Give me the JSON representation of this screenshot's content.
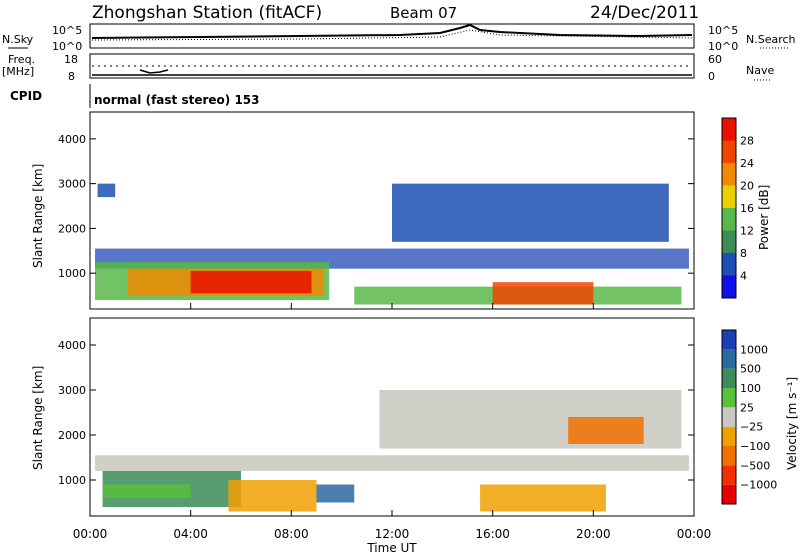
{
  "header": {
    "station": "Zhongshan Station (fitACF)",
    "beam": "Beam 07",
    "date": "24/Dec/2011"
  },
  "noise_panel": {
    "left_label": "N.Sky",
    "right_label": "N.Search",
    "tick_top": "10^5",
    "tick_bottom": "10^0",
    "right_tick_top": "10^5",
    "right_tick_bottom": "10^0"
  },
  "freq_panel": {
    "left_label_1": "Freq.",
    "left_label_2": "[MHz]",
    "tick_top": "18",
    "tick_bottom": "8",
    "right_label": "Nave",
    "right_tick_top": "60",
    "right_tick_bottom": "0"
  },
  "cpid_panel": {
    "label": "CPID",
    "text": "normal (fast stereo) 153"
  },
  "chart_data": [
    {
      "type": "heatmap",
      "name": "power",
      "ylabel": "Slant Range [km]",
      "ylim": [
        200,
        4600
      ],
      "yticks": [
        "1000",
        "2000",
        "3000",
        "4000"
      ],
      "colorbar_label": "Power [dB]",
      "colorbar_ticks": [
        "4",
        "8",
        "12",
        "16",
        "20",
        "24",
        "28"
      ],
      "colors": [
        "#1010e8",
        "#1f4fb5",
        "#3b8c57",
        "#58b848",
        "#e8d000",
        "#f08a00",
        "#f04500",
        "#e81000"
      ],
      "regions": [
        {
          "t0": 0.2,
          "t1": 23.8,
          "r0": 1100,
          "r1": 1550,
          "color": "#3b5fc0"
        },
        {
          "t0": 0.2,
          "t1": 9.5,
          "r0": 400,
          "r1": 1250,
          "color": "#58b848"
        },
        {
          "t0": 1.5,
          "t1": 9.3,
          "r0": 500,
          "r1": 1100,
          "color": "#f08a00"
        },
        {
          "t0": 4.0,
          "t1": 8.8,
          "r0": 550,
          "r1": 1050,
          "color": "#e81000"
        },
        {
          "t0": 10.5,
          "t1": 23.5,
          "r0": 300,
          "r1": 700,
          "color": "#58b848"
        },
        {
          "t0": 16.0,
          "t1": 20.0,
          "r0": 300,
          "r1": 800,
          "color": "#f04500"
        },
        {
          "t0": 12.0,
          "t1": 23.0,
          "r0": 1700,
          "r1": 3000,
          "color": "#1f4fb5"
        },
        {
          "t0": 0.3,
          "t1": 1.0,
          "r0": 2700,
          "r1": 3000,
          "color": "#1f4fb5"
        }
      ]
    },
    {
      "type": "heatmap",
      "name": "velocity",
      "ylabel": "Slant Range [km]",
      "ylim": [
        200,
        4600
      ],
      "yticks": [
        "1000",
        "2000",
        "3000",
        "4000"
      ],
      "colorbar_label": "Velocity [m s⁻¹]",
      "colorbar_ticks": [
        "1000",
        "500",
        "100",
        "25",
        "−25",
        "−100",
        "−500",
        "−1000"
      ],
      "colors": [
        "#1a3fb4",
        "#2b6aa0",
        "#3b8c57",
        "#58c03a",
        "#c8c8c0",
        "#f0a000",
        "#f07000",
        "#f03000",
        "#e80000"
      ],
      "regions": [
        {
          "t0": 0.2,
          "t1": 23.8,
          "r0": 1200,
          "r1": 1550,
          "color": "#c8c8c0"
        },
        {
          "t0": 0.5,
          "t1": 6.0,
          "r0": 400,
          "r1": 1200,
          "color": "#3b8c57"
        },
        {
          "t0": 0.5,
          "t1": 4.0,
          "r0": 600,
          "r1": 900,
          "color": "#58c03a"
        },
        {
          "t0": 5.5,
          "t1": 9.0,
          "r0": 300,
          "r1": 1000,
          "color": "#f0a000"
        },
        {
          "t0": 9.0,
          "t1": 10.5,
          "r0": 500,
          "r1": 900,
          "color": "#2b6aa0"
        },
        {
          "t0": 11.5,
          "t1": 23.5,
          "r0": 1700,
          "r1": 3000,
          "color": "#c8c8c0"
        },
        {
          "t0": 15.5,
          "t1": 20.5,
          "r0": 300,
          "r1": 900,
          "color": "#f0a000"
        },
        {
          "t0": 19.0,
          "t1": 22.0,
          "r0": 1800,
          "r1": 2400,
          "color": "#f07000"
        }
      ]
    }
  ],
  "xaxis": {
    "label": "Time UT",
    "ticks": [
      "00:00",
      "04:00",
      "08:00",
      "12:00",
      "16:00",
      "20:00",
      "00:00"
    ]
  }
}
